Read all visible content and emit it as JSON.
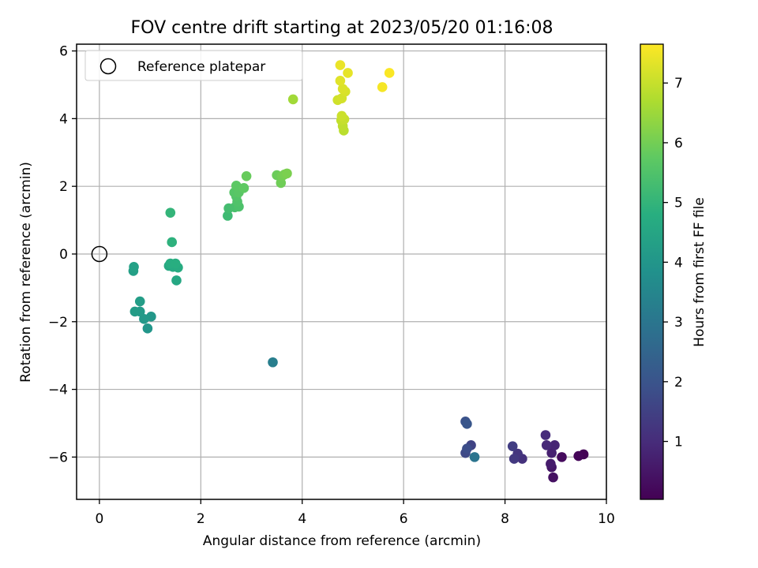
{
  "chart_data": {
    "type": "scatter",
    "title": "FOV centre drift starting at 2023/05/20 01:16:08",
    "xlabel": "Angular distance from reference (arcmin)",
    "ylabel": "Rotation from reference (arcmin)",
    "xlim": [
      -0.45,
      10
    ],
    "ylim": [
      -7.25,
      6.2
    ],
    "xticks": [
      0,
      2,
      4,
      6,
      8,
      10
    ],
    "yticks": [
      -6,
      -4,
      -2,
      0,
      2,
      4,
      6
    ],
    "xtick_labels": [
      "0",
      "2",
      "4",
      "6",
      "8",
      "10"
    ],
    "ytick_labels": [
      "−6",
      "−4",
      "−2",
      "0",
      "2",
      "4",
      "6"
    ],
    "grid": true,
    "colormap": "viridis",
    "legend": {
      "label": "Reference platepar",
      "placement": "top-left"
    },
    "reference_point": {
      "x": 0,
      "y": 0
    },
    "colorbar": {
      "label": "Hours from first FF file",
      "range": [
        0.03,
        7.65
      ],
      "ticks": [
        1,
        2,
        3,
        4,
        5,
        6,
        7
      ],
      "tick_labels": [
        "1",
        "2",
        "3",
        "4",
        "5",
        "6",
        "7"
      ]
    },
    "points": [
      {
        "x": 9.55,
        "y": -5.92,
        "t": 0.05
      },
      {
        "x": 9.45,
        "y": -5.97,
        "t": 0.12
      },
      {
        "x": 9.12,
        "y": -6.0,
        "t": 0.25
      },
      {
        "x": 8.95,
        "y": -6.6,
        "t": 0.38
      },
      {
        "x": 8.92,
        "y": -6.3,
        "t": 0.5
      },
      {
        "x": 8.9,
        "y": -6.2,
        "t": 0.62
      },
      {
        "x": 8.92,
        "y": -5.88,
        "t": 0.72
      },
      {
        "x": 8.98,
        "y": -5.65,
        "t": 0.82
      },
      {
        "x": 8.82,
        "y": -5.65,
        "t": 0.92
      },
      {
        "x": 8.8,
        "y": -5.35,
        "t": 1.02
      },
      {
        "x": 8.34,
        "y": -6.05,
        "t": 1.12
      },
      {
        "x": 8.25,
        "y": -5.9,
        "t": 1.22
      },
      {
        "x": 8.18,
        "y": -6.05,
        "t": 1.32
      },
      {
        "x": 8.15,
        "y": -5.68,
        "t": 1.42
      },
      {
        "x": 7.33,
        "y": -5.65,
        "t": 1.55
      },
      {
        "x": 7.22,
        "y": -5.88,
        "t": 1.7
      },
      {
        "x": 7.25,
        "y": -5.75,
        "t": 1.82
      },
      {
        "x": 7.22,
        "y": -4.95,
        "t": 1.95
      },
      {
        "x": 7.25,
        "y": -5.02,
        "t": 2.05
      },
      {
        "x": 7.4,
        "y": -6.0,
        "t": 2.95
      },
      {
        "x": 3.42,
        "y": -3.2,
        "t": 3.25
      },
      {
        "x": 0.95,
        "y": -2.2,
        "t": 4.0
      },
      {
        "x": 1.02,
        "y": -1.85,
        "t": 4.05
      },
      {
        "x": 0.88,
        "y": -1.92,
        "t": 4.1
      },
      {
        "x": 0.8,
        "y": -1.7,
        "t": 4.15
      },
      {
        "x": 0.7,
        "y": -1.7,
        "t": 4.2
      },
      {
        "x": 0.8,
        "y": -1.4,
        "t": 4.25
      },
      {
        "x": 0.67,
        "y": -0.5,
        "t": 4.3
      },
      {
        "x": 0.68,
        "y": -0.38,
        "t": 4.35
      },
      {
        "x": 1.52,
        "y": -0.78,
        "t": 4.55
      },
      {
        "x": 1.37,
        "y": -0.35,
        "t": 4.6
      },
      {
        "x": 1.45,
        "y": -0.38,
        "t": 4.65
      },
      {
        "x": 1.55,
        "y": -0.4,
        "t": 4.7
      },
      {
        "x": 1.4,
        "y": -0.28,
        "t": 4.75
      },
      {
        "x": 1.5,
        "y": -0.28,
        "t": 4.8
      },
      {
        "x": 1.43,
        "y": 0.35,
        "t": 4.9
      },
      {
        "x": 1.4,
        "y": 1.22,
        "t": 5.0
      },
      {
        "x": 2.53,
        "y": 1.13,
        "t": 5.2
      },
      {
        "x": 2.55,
        "y": 1.35,
        "t": 5.3
      },
      {
        "x": 2.67,
        "y": 1.38,
        "t": 5.4
      },
      {
        "x": 2.75,
        "y": 1.4,
        "t": 5.45
      },
      {
        "x": 2.72,
        "y": 1.55,
        "t": 5.5
      },
      {
        "x": 2.7,
        "y": 1.7,
        "t": 5.55
      },
      {
        "x": 2.66,
        "y": 1.82,
        "t": 5.6
      },
      {
        "x": 2.75,
        "y": 1.82,
        "t": 5.65
      },
      {
        "x": 2.7,
        "y": 2.02,
        "t": 5.7
      },
      {
        "x": 2.85,
        "y": 1.95,
        "t": 5.75
      },
      {
        "x": 2.9,
        "y": 2.3,
        "t": 5.85
      },
      {
        "x": 3.5,
        "y": 2.33,
        "t": 5.9
      },
      {
        "x": 3.58,
        "y": 2.1,
        "t": 5.95
      },
      {
        "x": 3.6,
        "y": 2.3,
        "t": 6.0
      },
      {
        "x": 3.65,
        "y": 2.35,
        "t": 6.05
      },
      {
        "x": 3.7,
        "y": 2.38,
        "t": 6.1
      },
      {
        "x": 3.82,
        "y": 4.57,
        "t": 6.55
      },
      {
        "x": 4.82,
        "y": 3.65,
        "t": 6.85
      },
      {
        "x": 4.8,
        "y": 3.78,
        "t": 6.9
      },
      {
        "x": 4.77,
        "y": 3.95,
        "t": 6.95
      },
      {
        "x": 4.83,
        "y": 3.98,
        "t": 7.0
      },
      {
        "x": 4.78,
        "y": 4.08,
        "t": 7.05
      },
      {
        "x": 4.7,
        "y": 4.55,
        "t": 7.1
      },
      {
        "x": 4.78,
        "y": 4.6,
        "t": 7.15
      },
      {
        "x": 4.85,
        "y": 4.8,
        "t": 7.2
      },
      {
        "x": 4.8,
        "y": 4.88,
        "t": 7.25
      },
      {
        "x": 4.75,
        "y": 5.12,
        "t": 7.3
      },
      {
        "x": 4.9,
        "y": 5.35,
        "t": 7.38
      },
      {
        "x": 4.75,
        "y": 5.58,
        "t": 7.42
      },
      {
        "x": 5.58,
        "y": 4.93,
        "t": 7.55
      },
      {
        "x": 5.72,
        "y": 5.35,
        "t": 7.62
      }
    ]
  }
}
